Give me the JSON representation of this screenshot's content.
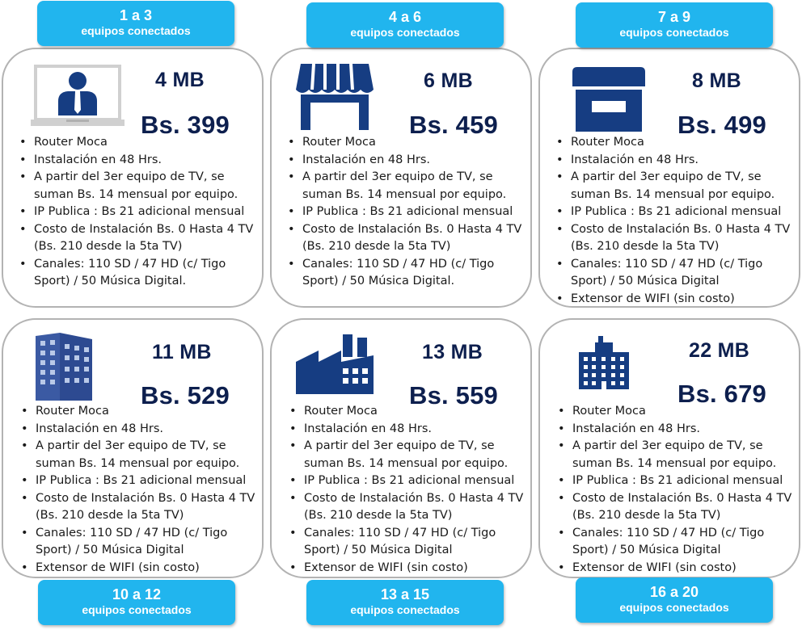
{
  "plans": [
    {
      "tier": {
        "count": "1 a 3",
        "unit": "equipos conectados"
      },
      "speed": "4 MB",
      "price": "Bs. 399",
      "icon": "computer-user-icon",
      "features": [
        "Router Moca",
        "Instalación en 48 Hrs.",
        "A partir del 3er equipo de TV, se suman Bs. 14 mensual por equipo.",
        "IP Publica : Bs 21 adicional mensual",
        "Costo de Instalación Bs. 0 Hasta 4 TV (Bs. 210 desde la 5ta TV)",
        "Canales: 110 SD / 47 HD (c/ Tigo Sport) / 50 Música Digital."
      ]
    },
    {
      "tier": {
        "count": "4 a 6",
        "unit": "equipos conectados"
      },
      "speed": "6 MB",
      "price": "Bs. 459",
      "icon": "storefront-awning-icon",
      "features": [
        "Router Moca",
        "Instalación en 48 Hrs.",
        "A partir del 3er equipo de TV, se suman Bs. 14 mensual por equipo.",
        "IP Publica : Bs 21 adicional mensual",
        "Costo de Instalación Bs. 0 Hasta 4 TV (Bs. 210 desde la 5ta TV)",
        "Canales: 110 SD / 47 HD (c/ Tigo Sport) / 50 Música Digital."
      ]
    },
    {
      "tier": {
        "count": "7 a 9",
        "unit": "equipos conectados"
      },
      "speed": "8 MB",
      "price": "Bs. 499",
      "icon": "store-icon",
      "features": [
        "Router Moca",
        "Instalación en 48 Hrs.",
        "A partir del 3er equipo de TV, se suman Bs. 14 mensual por equipo.",
        "IP Publica : Bs 21 adicional mensual",
        "Costo de Instalación Bs. 0 Hasta 4 TV (Bs. 210 desde la 5ta TV)",
        "Canales: 110 SD / 47 HD (c/ Tigo Sport) / 50 Música Digital",
        "Extensor de WIFI (sin costo)"
      ]
    },
    {
      "tier": {
        "count": "10 a 12",
        "unit": "equipos conectados"
      },
      "speed": "11 MB",
      "price": "Bs. 529",
      "icon": "office-building-icon",
      "features": [
        "Router Moca",
        "Instalación en 48 Hrs.",
        "A partir del 3er equipo de TV, se suman Bs. 14 mensual por equipo.",
        "IP Publica : Bs 21 adicional mensual",
        "Costo de Instalación Bs. 0 Hasta 4 TV (Bs. 210 desde la 5ta TV)",
        "Canales: 110 SD / 47 HD (c/ Tigo Sport) / 50 Música Digital",
        "Extensor de WIFI (sin costo)"
      ]
    },
    {
      "tier": {
        "count": "13 a 15",
        "unit": "equipos conectados"
      },
      "speed": "13 MB",
      "price": "Bs. 559",
      "icon": "factory-icon",
      "features": [
        "Router Moca",
        "Instalación en 48 Hrs.",
        "A partir del 3er equipo de TV, se suman Bs. 14 mensual por equipo.",
        "IP Publica : Bs 21 adicional mensual",
        "Costo de Instalación Bs. 0 Hasta 4 TV (Bs. 210 desde la 5ta TV)",
        "Canales: 110 SD / 47 HD (c/ Tigo Sport) / 50 Música Digital",
        "Extensor de WIFI (sin costo)"
      ]
    },
    {
      "tier": {
        "count": "16 a 20",
        "unit": "equipos conectados"
      },
      "speed": "22 MB",
      "price": "Bs. 679",
      "icon": "corporate-building-icon",
      "features": [
        "Router Moca",
        "Instalación en 48 Hrs.",
        "A partir del 3er equipo de TV, se suman Bs. 14 mensual por equipo.",
        "IP Publica : Bs 21 adicional mensual",
        "Costo de Instalación Bs. 0 Hasta 4 TV (Bs. 210 desde la 5ta TV)",
        "Canales: 110 SD / 47 HD (c/ Tigo Sport) / 50 Música Digital",
        "Extensor de WIFI (sin costo)"
      ]
    }
  ],
  "colors": {
    "badge": "#21b5ee",
    "icon": "#163d82",
    "heading": "#0d1f4e",
    "card_border": "#b3b3b3"
  }
}
